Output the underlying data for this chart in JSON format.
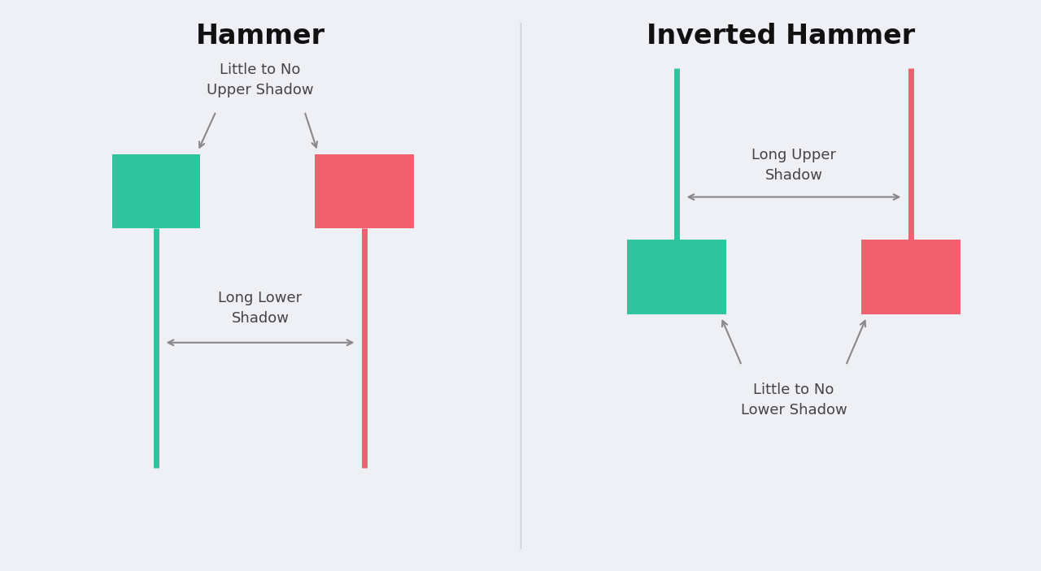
{
  "bg_color": "#eef0f5",
  "green_color": "#2dc49e",
  "red_color": "#f0606e",
  "arrow_color": "#888888",
  "text_color": "#444444",
  "title_color": "#111111",
  "divider_color": "#c8cad4",
  "left_title": "Hammer",
  "right_title": "Inverted Hammer",
  "left_label1": "Little to No\nUpper Shadow",
  "left_label2": "Long Lower\nShadow",
  "right_label1": "Long Upper\nShadow",
  "right_label2": "Little to No\nLower Shadow",
  "candle_linewidth": 5,
  "title_fontsize": 24,
  "label_fontsize": 13
}
